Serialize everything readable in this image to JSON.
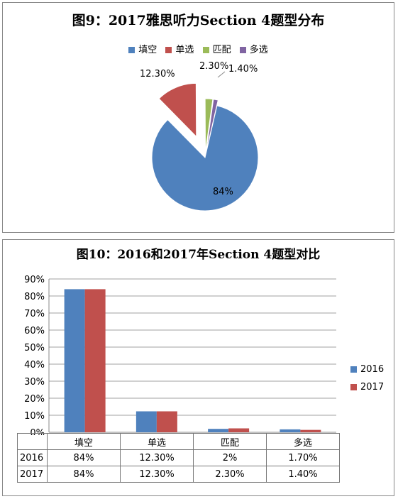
{
  "pie_chart": {
    "title": "图9：2017雅思听力Section 4题型分布",
    "legend": [
      "填空",
      "单选",
      "匹配",
      "多选"
    ],
    "labels": [
      "84%",
      "12.30%",
      "2.30%",
      "1.40%"
    ],
    "colors": {
      "填空": "#4f81bd",
      "单选": "#c0504d",
      "匹配": "#9bbb59",
      "多选": "#8064a2"
    }
  },
  "bar_chart": {
    "title": "图10：2016和2017年Section 4题型对比",
    "y_ticks": [
      "0%",
      "10%",
      "20%",
      "30%",
      "40%",
      "50%",
      "60%",
      "70%",
      "80%",
      "90%"
    ],
    "legend": [
      "2016",
      "2017"
    ],
    "table": {
      "categories": [
        "填空",
        "单选",
        "匹配",
        "多选"
      ],
      "rows": [
        {
          "label": "2016",
          "cells": [
            "84%",
            "12.30%",
            "2%",
            "1.70%"
          ]
        },
        {
          "label": "2017",
          "cells": [
            "84%",
            "12.30%",
            "2.30%",
            "1.40%"
          ]
        }
      ]
    },
    "colors": {
      "2016": "#4f81bd",
      "2017": "#c0504d"
    }
  },
  "chart_data": [
    {
      "type": "pie",
      "title": "图9：2017雅思听力Section 4题型分布",
      "categories": [
        "填空",
        "单选",
        "匹配",
        "多选"
      ],
      "values": [
        84,
        12.3,
        2.3,
        1.4
      ],
      "legend_position": "top"
    },
    {
      "type": "bar",
      "title": "图10：2016和2017年Section 4题型对比",
      "categories": [
        "填空",
        "单选",
        "匹配",
        "多选"
      ],
      "series": [
        {
          "name": "2016",
          "values": [
            84,
            12.3,
            2,
            1.7
          ]
        },
        {
          "name": "2017",
          "values": [
            84,
            12.3,
            2.3,
            1.4
          ]
        }
      ],
      "ylim": [
        0,
        90
      ],
      "grid": true,
      "legend_position": "right"
    }
  ]
}
